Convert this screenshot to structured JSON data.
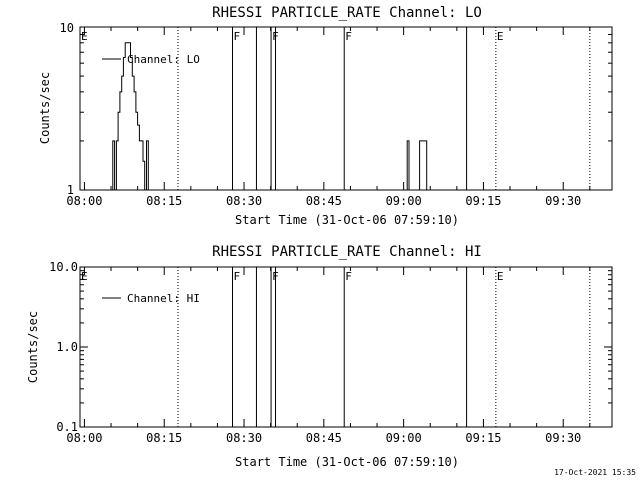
{
  "timestamp": "17-Oct-2021 15:35",
  "chart_data": [
    {
      "type": "line",
      "title": "RHESSI PARTICLE_RATE Channel: LO",
      "xlabel": "Start Time (31-Oct-06 07:59:10)",
      "ylabel": "Counts/sec",
      "y_scale": "log",
      "ylim": [
        1,
        10
      ],
      "y_ticks": [
        "1",
        "10"
      ],
      "x_ticks": [
        "08:00",
        "08:15",
        "08:30",
        "08:45",
        "09:00",
        "09:15",
        "09:30"
      ],
      "legend": "Channel: LO",
      "legend_position": "top-left",
      "series": [
        {
          "name": "Channel: LO",
          "points": [
            [
              "08:05:00",
              1
            ],
            [
              "08:05:20",
              2
            ],
            [
              "08:05:40",
              1
            ],
            [
              "08:06:00",
              2
            ],
            [
              "08:06:20",
              3
            ],
            [
              "08:06:40",
              4
            ],
            [
              "08:07:00",
              5
            ],
            [
              "08:07:20",
              6.5
            ],
            [
              "08:07:40",
              8
            ],
            [
              "08:08:00",
              8
            ],
            [
              "08:08:20",
              8
            ],
            [
              "08:08:40",
              6.5
            ],
            [
              "08:09:00",
              5
            ],
            [
              "08:09:20",
              4
            ],
            [
              "08:09:40",
              3
            ],
            [
              "08:10:00",
              2.5
            ],
            [
              "08:10:20",
              2
            ],
            [
              "08:10:40",
              2
            ],
            [
              "08:11:00",
              1.5
            ],
            [
              "08:11:20",
              1
            ],
            [
              "08:11:40",
              2
            ],
            [
              "08:12:00",
              1
            ],
            [
              "09:00:20",
              1
            ],
            [
              "09:00:40",
              2
            ],
            [
              "09:01:00",
              1
            ],
            [
              "09:02:40",
              1
            ],
            [
              "09:03:00",
              2
            ],
            [
              "09:03:40",
              2
            ],
            [
              "09:04:00",
              2
            ],
            [
              "09:04:20",
              1
            ]
          ]
        }
      ]
    },
    {
      "type": "line",
      "title": "RHESSI PARTICLE_RATE Channel: HI",
      "xlabel": "Start Time (31-Oct-06 07:59:10)",
      "ylabel": "Counts/sec",
      "y_scale": "log",
      "ylim": [
        0.1,
        10
      ],
      "y_ticks": [
        "0.1",
        "1.0",
        "10.0"
      ],
      "x_ticks": [
        "08:00",
        "08:15",
        "08:30",
        "08:45",
        "09:00",
        "09:15",
        "09:30"
      ],
      "legend": "Channel: HI",
      "legend_position": "top-left",
      "series": [
        {
          "name": "Channel: HI",
          "points": []
        }
      ]
    }
  ],
  "markers": [
    {
      "time": "07:59:10",
      "label": "E",
      "style": "solid"
    },
    {
      "time": "08:17:35",
      "label": "",
      "style": "dotted"
    },
    {
      "time": "08:27:50",
      "label": "F",
      "style": "solid"
    },
    {
      "time": "08:32:20",
      "label": "",
      "style": "solid"
    },
    {
      "time": "08:35:05",
      "label": "F",
      "style": "solid"
    },
    {
      "time": "08:35:55",
      "label": "",
      "style": "solid"
    },
    {
      "time": "08:48:50",
      "label": "F",
      "style": "solid"
    },
    {
      "time": "09:11:50",
      "label": "",
      "style": "solid"
    },
    {
      "time": "09:17:20",
      "label": "E",
      "style": "dotted"
    },
    {
      "time": "09:35:00",
      "label": "",
      "style": "dotted"
    }
  ]
}
